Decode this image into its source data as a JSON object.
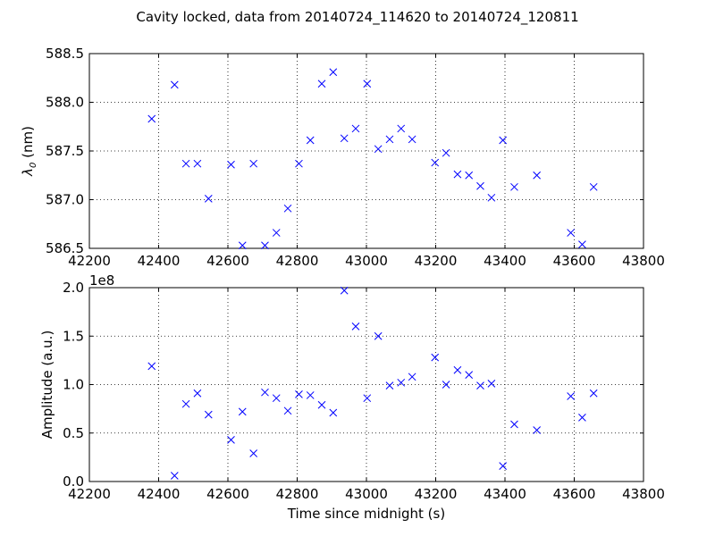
{
  "title": "Cavity locked, data from 20140724_114620 to 20140724_120811",
  "colors": {
    "marker": "#0000ff",
    "axes": "#000000",
    "grid": "#000000",
    "background": "#ffffff"
  },
  "chart_data": [
    {
      "type": "scatter",
      "marker": "x",
      "grid": true,
      "xlabel": "",
      "ylabel": "λ0 (nm)",
      "ylabel_main": "λ",
      "ylabel_sub": "0",
      "ylabel_rest": " (nm)",
      "xlim": [
        42200,
        43800
      ],
      "ylim": [
        586.5,
        588.5
      ],
      "xticks": [
        42200,
        42400,
        42600,
        42800,
        43000,
        43200,
        43400,
        43600,
        43800
      ],
      "xtick_labels": [
        "42200",
        "42400",
        "42600",
        "42800",
        "43000",
        "43200",
        "43400",
        "43600",
        "43800"
      ],
      "yticks": [
        586.5,
        587.0,
        587.5,
        588.0,
        588.5
      ],
      "ytick_labels": [
        "586.5",
        "587.0",
        "587.5",
        "588.0",
        "588.5"
      ],
      "points": [
        [
          42380,
          587.83
        ],
        [
          42446,
          588.18
        ],
        [
          42479,
          587.37
        ],
        [
          42512,
          587.37
        ],
        [
          42544,
          587.01
        ],
        [
          42609,
          587.36
        ],
        [
          42642,
          586.53
        ],
        [
          42674,
          587.37
        ],
        [
          42707,
          586.53
        ],
        [
          42740,
          586.66
        ],
        [
          42773,
          586.91
        ],
        [
          42805,
          587.37
        ],
        [
          42838,
          587.61
        ],
        [
          42871,
          588.19
        ],
        [
          42904,
          588.31
        ],
        [
          42936,
          587.63
        ],
        [
          42969,
          587.73
        ],
        [
          43002,
          588.19
        ],
        [
          43034,
          587.52
        ],
        [
          43067,
          587.62
        ],
        [
          43100,
          587.73
        ],
        [
          43132,
          587.62
        ],
        [
          43198,
          587.38
        ],
        [
          43230,
          587.48
        ],
        [
          43263,
          587.26
        ],
        [
          43296,
          587.25
        ],
        [
          43329,
          587.14
        ],
        [
          43361,
          587.02
        ],
        [
          43394,
          587.61
        ],
        [
          43427,
          587.13
        ],
        [
          43492,
          587.25
        ],
        [
          43590,
          586.66
        ],
        [
          43623,
          586.54
        ],
        [
          43656,
          587.13
        ]
      ]
    },
    {
      "type": "scatter",
      "marker": "x",
      "grid": true,
      "xlabel": "Time since midnight (s)",
      "ylabel": "Amplitude (a.u.)",
      "offset_label": "1e8",
      "xlim": [
        42200,
        43800
      ],
      "ylim": [
        0.0,
        2.0
      ],
      "xticks": [
        42200,
        42400,
        42600,
        42800,
        43000,
        43200,
        43400,
        43600,
        43800
      ],
      "xtick_labels": [
        "42200",
        "42400",
        "42600",
        "42800",
        "43000",
        "43200",
        "43400",
        "43600",
        "43800"
      ],
      "yticks": [
        0.0,
        0.5,
        1.0,
        1.5,
        2.0
      ],
      "ytick_labels": [
        "0.0",
        "0.5",
        "1.0",
        "1.5",
        "2.0"
      ],
      "points": [
        [
          42380,
          1.19
        ],
        [
          42446,
          0.06
        ],
        [
          42479,
          0.8
        ],
        [
          42512,
          0.91
        ],
        [
          42544,
          0.69
        ],
        [
          42609,
          0.43
        ],
        [
          42642,
          0.72
        ],
        [
          42674,
          0.29
        ],
        [
          42707,
          0.92
        ],
        [
          42740,
          0.86
        ],
        [
          42773,
          0.73
        ],
        [
          42805,
          0.9
        ],
        [
          42838,
          0.89
        ],
        [
          42871,
          0.79
        ],
        [
          42904,
          0.71
        ],
        [
          42936,
          1.97
        ],
        [
          42969,
          1.6
        ],
        [
          43002,
          0.86
        ],
        [
          43034,
          1.5
        ],
        [
          43067,
          0.99
        ],
        [
          43100,
          1.02
        ],
        [
          43132,
          1.08
        ],
        [
          43198,
          1.28
        ],
        [
          43230,
          1.0
        ],
        [
          43263,
          1.15
        ],
        [
          43296,
          1.1
        ],
        [
          43329,
          0.99
        ],
        [
          43361,
          1.01
        ],
        [
          43394,
          0.16
        ],
        [
          43427,
          0.59
        ],
        [
          43492,
          0.53
        ],
        [
          43590,
          0.88
        ],
        [
          43623,
          0.66
        ],
        [
          43656,
          0.91
        ]
      ]
    }
  ]
}
